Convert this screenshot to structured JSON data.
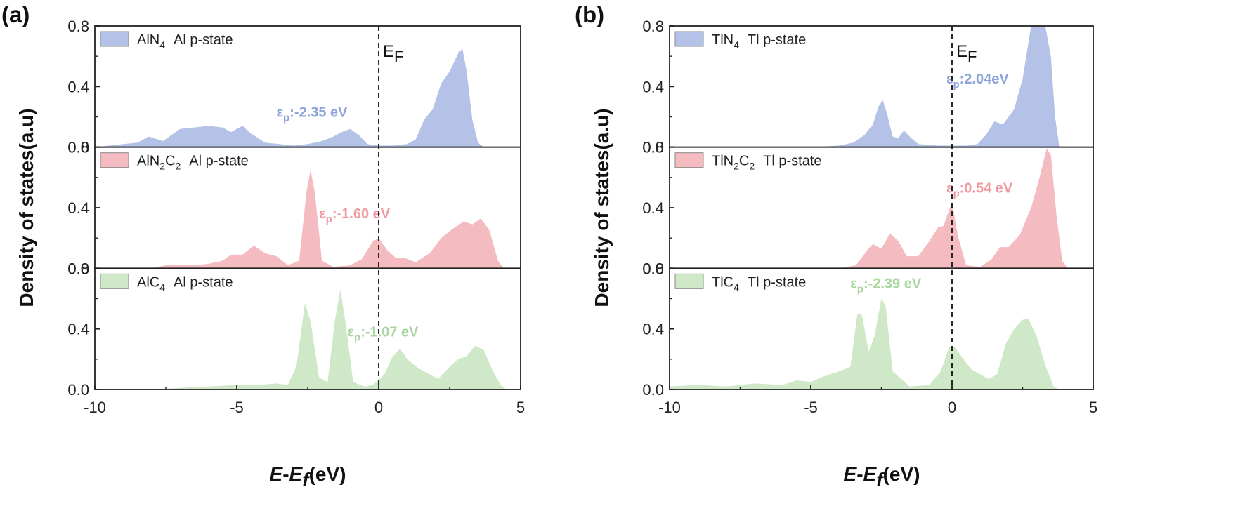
{
  "chart_data": [
    {
      "type": "area",
      "panel_label": "(a)",
      "ylabel": "Density of states(a.u)",
      "xlabel_parts": {
        "e1": "E",
        "mid": "-",
        "e2": "E",
        "sub": "f",
        "unit": "(eV)"
      },
      "xlim": [
        -10,
        5
      ],
      "x_ticks": [
        -10,
        -5,
        0,
        5
      ],
      "x_tick_labels": [
        "-10",
        "-5",
        "0",
        "5"
      ],
      "ef_label": {
        "main": "E",
        "sub": "F"
      },
      "subplots": [
        {
          "name": "AlN4 Al p-state",
          "legend": {
            "prefix": "AlN",
            "sub1": "4",
            "mid": "",
            "sub2": "",
            "suffix": "Al p-state"
          },
          "color": "#b3c2e6",
          "text_color": "#8ea3d8",
          "ylim": [
            0,
            0.8
          ],
          "y_tick_labels": [
            "0.0",
            "0.4",
            "0.8"
          ],
          "annotation": {
            "text": ":-2.35 eV",
            "x": -3.6,
            "y": 0.2
          },
          "points": [
            [
              -10,
              0.0
            ],
            [
              -9,
              0.02
            ],
            [
              -8.5,
              0.03
            ],
            [
              -8.1,
              0.07
            ],
            [
              -7.6,
              0.04
            ],
            [
              -7.0,
              0.12
            ],
            [
              -6.5,
              0.13
            ],
            [
              -6.0,
              0.14
            ],
            [
              -5.5,
              0.13
            ],
            [
              -5.2,
              0.1
            ],
            [
              -4.8,
              0.14
            ],
            [
              -4.5,
              0.09
            ],
            [
              -4.0,
              0.03
            ],
            [
              -3.5,
              0.02
            ],
            [
              -3.0,
              0.01
            ],
            [
              -2.5,
              0.02
            ],
            [
              -2.0,
              0.04
            ],
            [
              -1.6,
              0.07
            ],
            [
              -1.3,
              0.1
            ],
            [
              -1.0,
              0.12
            ],
            [
              -0.7,
              0.08
            ],
            [
              -0.4,
              0.02
            ],
            [
              0.0,
              0.01
            ],
            [
              0.5,
              0.01
            ],
            [
              1.0,
              0.02
            ],
            [
              1.3,
              0.05
            ],
            [
              1.6,
              0.18
            ],
            [
              1.9,
              0.25
            ],
            [
              2.2,
              0.42
            ],
            [
              2.5,
              0.5
            ],
            [
              2.8,
              0.62
            ],
            [
              2.95,
              0.65
            ],
            [
              3.1,
              0.5
            ],
            [
              3.3,
              0.18
            ],
            [
              3.5,
              0.03
            ],
            [
              3.7,
              0.0
            ]
          ]
        },
        {
          "name": "AlN2C2 Al p-state",
          "legend": {
            "prefix": "AlN",
            "sub1": "2",
            "mid": "C",
            "sub2": "2",
            "suffix": "Al p-state"
          },
          "color": "#f4bcc0",
          "text_color": "#ef9aa1",
          "ylim": [
            0,
            0.8
          ],
          "y_tick_labels": [
            "0.0",
            "0.4",
            "0.8"
          ],
          "annotation": {
            "text": ":-1.60 eV",
            "x": -2.1,
            "y": 0.33
          },
          "points": [
            [
              -10,
              0.0
            ],
            [
              -8,
              0.0
            ],
            [
              -7.5,
              0.02
            ],
            [
              -6.5,
              0.02
            ],
            [
              -6.0,
              0.03
            ],
            [
              -5.5,
              0.05
            ],
            [
              -5.2,
              0.09
            ],
            [
              -4.8,
              0.09
            ],
            [
              -4.4,
              0.15
            ],
            [
              -4.0,
              0.1
            ],
            [
              -3.6,
              0.08
            ],
            [
              -3.2,
              0.02
            ],
            [
              -2.8,
              0.05
            ],
            [
              -2.55,
              0.5
            ],
            [
              -2.4,
              0.65
            ],
            [
              -2.25,
              0.5
            ],
            [
              -2.0,
              0.05
            ],
            [
              -1.6,
              0.01
            ],
            [
              -1.0,
              0.02
            ],
            [
              -0.6,
              0.06
            ],
            [
              -0.2,
              0.18
            ],
            [
              0.0,
              0.2
            ],
            [
              0.3,
              0.12
            ],
            [
              0.6,
              0.07
            ],
            [
              0.9,
              0.07
            ],
            [
              1.3,
              0.04
            ],
            [
              1.8,
              0.1
            ],
            [
              2.2,
              0.2
            ],
            [
              2.6,
              0.26
            ],
            [
              3.0,
              0.31
            ],
            [
              3.3,
              0.29
            ],
            [
              3.6,
              0.33
            ],
            [
              3.9,
              0.25
            ],
            [
              4.2,
              0.05
            ],
            [
              4.4,
              0.0
            ]
          ]
        },
        {
          "name": "AlC4 Al p-state",
          "legend": {
            "prefix": "AlC",
            "sub1": "4",
            "mid": "",
            "sub2": "",
            "suffix": "Al p-state"
          },
          "color": "#cfe8c8",
          "text_color": "#a9d69e",
          "ylim": [
            0,
            0.8
          ],
          "y_tick_labels": [
            "0.0",
            "0.4",
            "0.8"
          ],
          "annotation": {
            "text": ":-1.07 eV",
            "x": -1.1,
            "y": 0.35
          },
          "points": [
            [
              -10,
              0.0
            ],
            [
              -8,
              0.0
            ],
            [
              -7,
              0.01
            ],
            [
              -6,
              0.02
            ],
            [
              -5,
              0.03
            ],
            [
              -4.2,
              0.03
            ],
            [
              -3.6,
              0.04
            ],
            [
              -3.2,
              0.03
            ],
            [
              -2.9,
              0.15
            ],
            [
              -2.6,
              0.57
            ],
            [
              -2.4,
              0.45
            ],
            [
              -2.1,
              0.08
            ],
            [
              -1.8,
              0.05
            ],
            [
              -1.55,
              0.45
            ],
            [
              -1.35,
              0.66
            ],
            [
              -1.15,
              0.42
            ],
            [
              -0.9,
              0.05
            ],
            [
              -0.5,
              0.02
            ],
            [
              -0.2,
              0.03
            ],
            [
              0.2,
              0.1
            ],
            [
              0.5,
              0.22
            ],
            [
              0.75,
              0.27
            ],
            [
              1.0,
              0.2
            ],
            [
              1.4,
              0.14
            ],
            [
              1.8,
              0.1
            ],
            [
              2.1,
              0.07
            ],
            [
              2.5,
              0.15
            ],
            [
              2.8,
              0.2
            ],
            [
              3.1,
              0.22
            ],
            [
              3.4,
              0.29
            ],
            [
              3.7,
              0.26
            ],
            [
              4.0,
              0.13
            ],
            [
              4.3,
              0.03
            ],
            [
              4.5,
              0.0
            ]
          ]
        }
      ]
    },
    {
      "type": "area",
      "panel_label": "(b)",
      "ylabel": "Density of states(a.u)",
      "xlabel_parts": {
        "e1": "E",
        "mid": "-",
        "e2": "E",
        "sub": "f",
        "unit": "(eV)"
      },
      "xlim": [
        -10,
        5
      ],
      "x_ticks": [
        -10,
        -5,
        0,
        5
      ],
      "x_tick_labels": [
        "-10",
        "-5",
        "0",
        "5"
      ],
      "ef_label": {
        "main": "E",
        "sub": "F"
      },
      "subplots": [
        {
          "name": "TlN4 Tl p-state",
          "legend": {
            "prefix": "TlN",
            "sub1": "4",
            "mid": "",
            "sub2": "",
            "suffix": "Tl p-state"
          },
          "color": "#b3c2e6",
          "text_color": "#8ea3d8",
          "ylim": [
            0,
            0.8
          ],
          "y_tick_labels": [
            "0.0",
            "0.4",
            "0.8"
          ],
          "annotation": {
            "text": ":2.04eV",
            "x": -0.2,
            "y": 0.42
          },
          "points": [
            [
              -10,
              0.0
            ],
            [
              -5,
              0.0
            ],
            [
              -4,
              0.01
            ],
            [
              -3.5,
              0.03
            ],
            [
              -3.1,
              0.08
            ],
            [
              -2.8,
              0.15
            ],
            [
              -2.6,
              0.27
            ],
            [
              -2.45,
              0.31
            ],
            [
              -2.3,
              0.22
            ],
            [
              -2.1,
              0.07
            ],
            [
              -1.9,
              0.06
            ],
            [
              -1.7,
              0.11
            ],
            [
              -1.5,
              0.07
            ],
            [
              -1.2,
              0.02
            ],
            [
              -0.5,
              0.01
            ],
            [
              0.0,
              0.01
            ],
            [
              0.5,
              0.01
            ],
            [
              0.9,
              0.02
            ],
            [
              1.2,
              0.08
            ],
            [
              1.5,
              0.17
            ],
            [
              1.8,
              0.15
            ],
            [
              2.2,
              0.25
            ],
            [
              2.5,
              0.45
            ],
            [
              2.8,
              0.8
            ],
            [
              3.1,
              0.8
            ],
            [
              3.3,
              0.8
            ],
            [
              3.5,
              0.6
            ],
            [
              3.65,
              0.2
            ],
            [
              3.8,
              0.0
            ]
          ]
        },
        {
          "name": "TlN2C2 Tl p-state",
          "legend": {
            "prefix": "TlN",
            "sub1": "2",
            "mid": "C",
            "sub2": "2",
            "suffix": "Tl p-state"
          },
          "color": "#f4bcc0",
          "text_color": "#ef9aa1",
          "ylim": [
            0,
            0.8
          ],
          "y_tick_labels": [
            "0.0",
            "0.4",
            "0.8"
          ],
          "annotation": {
            "text": ":0.54 eV",
            "x": -0.2,
            "y": 0.5
          },
          "points": [
            [
              -10,
              0.0
            ],
            [
              -4,
              0.0
            ],
            [
              -3.4,
              0.02
            ],
            [
              -3.0,
              0.12
            ],
            [
              -2.8,
              0.16
            ],
            [
              -2.5,
              0.13
            ],
            [
              -2.2,
              0.23
            ],
            [
              -1.9,
              0.18
            ],
            [
              -1.6,
              0.08
            ],
            [
              -1.2,
              0.08
            ],
            [
              -0.8,
              0.18
            ],
            [
              -0.5,
              0.27
            ],
            [
              -0.3,
              0.28
            ],
            [
              0.0,
              0.44
            ],
            [
              0.2,
              0.22
            ],
            [
              0.5,
              0.02
            ],
            [
              1.0,
              0.01
            ],
            [
              1.4,
              0.06
            ],
            [
              1.7,
              0.14
            ],
            [
              2.0,
              0.14
            ],
            [
              2.4,
              0.22
            ],
            [
              2.8,
              0.4
            ],
            [
              3.1,
              0.6
            ],
            [
              3.35,
              0.79
            ],
            [
              3.5,
              0.75
            ],
            [
              3.7,
              0.35
            ],
            [
              3.9,
              0.05
            ],
            [
              4.1,
              0.0
            ]
          ]
        },
        {
          "name": "TlC4 Tl p-state",
          "legend": {
            "prefix": "TlC",
            "sub1": "4",
            "mid": "",
            "sub2": "",
            "suffix": "Tl p-state"
          },
          "color": "#cfe8c8",
          "text_color": "#a9d69e",
          "ylim": [
            0,
            0.8
          ],
          "y_tick_labels": [
            "0.0",
            "0.4",
            "0.8"
          ],
          "annotation": {
            "text": ":-2.39 eV",
            "x": -3.6,
            "y": 0.67
          },
          "points": [
            [
              -10,
              0.02
            ],
            [
              -9,
              0.03
            ],
            [
              -8,
              0.02
            ],
            [
              -7,
              0.04
            ],
            [
              -6,
              0.03
            ],
            [
              -5.5,
              0.06
            ],
            [
              -5,
              0.05
            ],
            [
              -4.5,
              0.09
            ],
            [
              -4,
              0.12
            ],
            [
              -3.6,
              0.15
            ],
            [
              -3.35,
              0.5
            ],
            [
              -3.2,
              0.5
            ],
            [
              -2.95,
              0.25
            ],
            [
              -2.75,
              0.35
            ],
            [
              -2.5,
              0.6
            ],
            [
              -2.35,
              0.55
            ],
            [
              -2.1,
              0.12
            ],
            [
              -1.5,
              0.02
            ],
            [
              -0.8,
              0.03
            ],
            [
              -0.4,
              0.12
            ],
            [
              -0.1,
              0.28
            ],
            [
              0.1,
              0.28
            ],
            [
              0.4,
              0.2
            ],
            [
              0.7,
              0.13
            ],
            [
              1.0,
              0.1
            ],
            [
              1.3,
              0.07
            ],
            [
              1.6,
              0.1
            ],
            [
              1.9,
              0.3
            ],
            [
              2.2,
              0.4
            ],
            [
              2.5,
              0.46
            ],
            [
              2.7,
              0.47
            ],
            [
              3.0,
              0.35
            ],
            [
              3.3,
              0.16
            ],
            [
              3.6,
              0.02
            ],
            [
              3.8,
              0.0
            ]
          ]
        }
      ]
    }
  ]
}
